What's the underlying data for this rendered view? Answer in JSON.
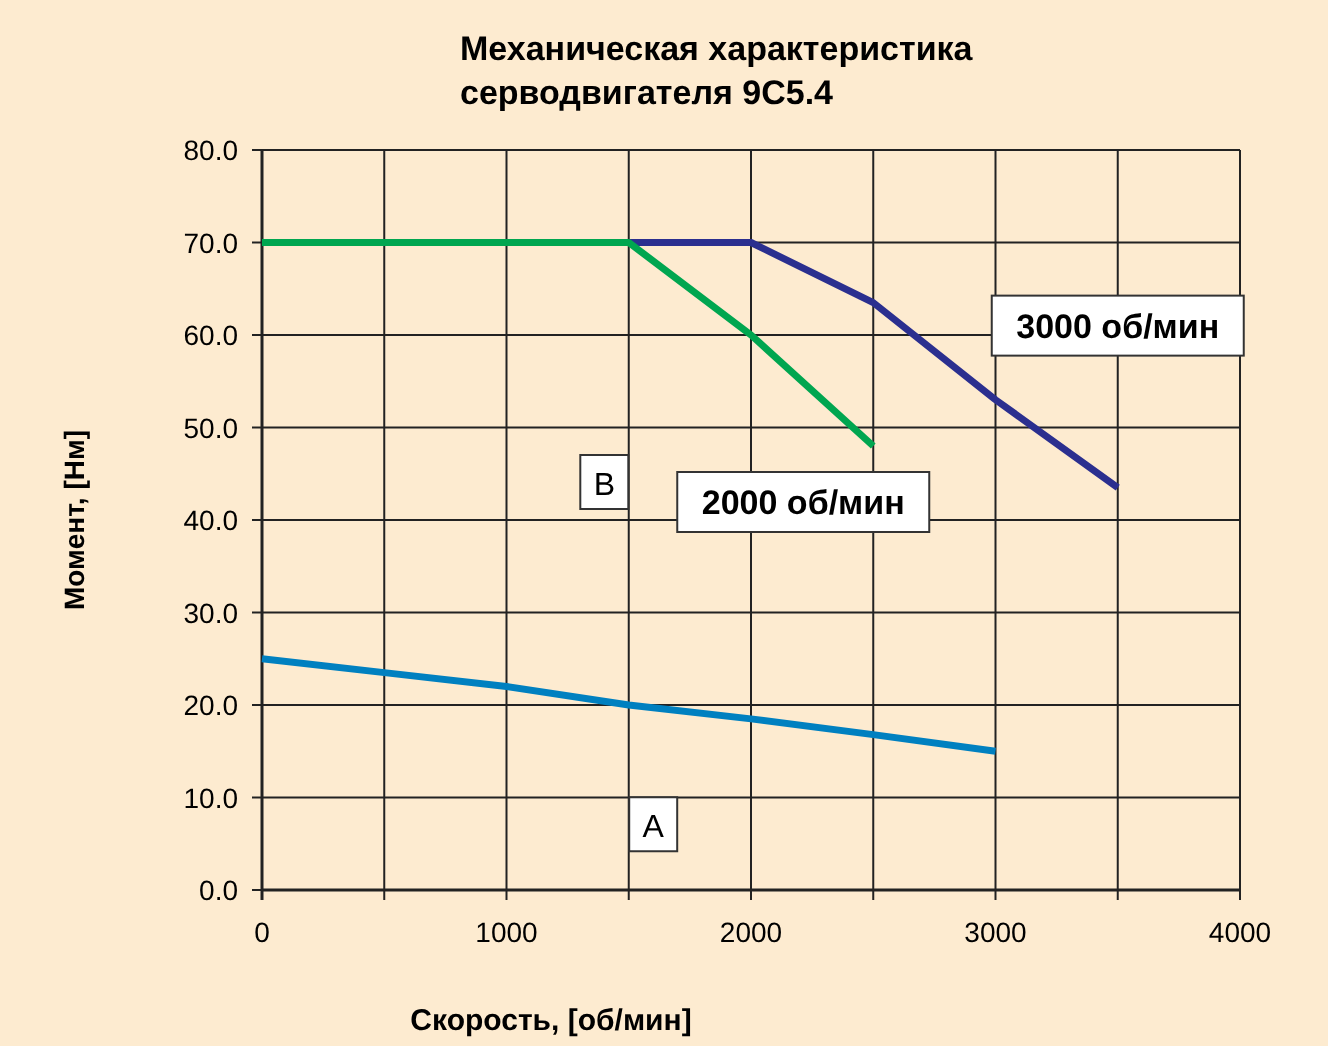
{
  "chart_data": {
    "type": "line",
    "title": "Механическая характеристика\nсерводвигателя 9С5.4",
    "xlabel": "Скорость, [об/мин]",
    "ylabel": "Момент, [Нм]",
    "xlim": [
      0,
      4000
    ],
    "xticks": [
      0,
      {
        "value": 500,
        "label": null
      },
      1000,
      {
        "value": 1500,
        "label": null
      },
      2000,
      {
        "value": 2500,
        "label": null
      },
      3000,
      {
        "value": 3500,
        "label": null
      },
      4000
    ],
    "ylim": [
      0,
      80
    ],
    "yticks": [
      {
        "value": 0,
        "label": "0.0"
      },
      {
        "value": 10,
        "label": "10.0"
      },
      {
        "value": 20,
        "label": "20.0"
      },
      {
        "value": 30,
        "label": "30.0"
      },
      {
        "value": 40,
        "label": "40.0"
      },
      {
        "value": 50,
        "label": "50.0"
      },
      {
        "value": 60,
        "label": "60.0"
      },
      {
        "value": 70,
        "label": "70.0"
      },
      {
        "value": 80,
        "label": "80.0"
      }
    ],
    "grid": true,
    "line_style": "solid",
    "series": [
      {
        "name": "3000 об/мин",
        "color": "#2b2f8f",
        "x": [
          0,
          2000,
          2500,
          3000,
          3500
        ],
        "values": [
          70,
          70,
          63.5,
          53,
          43.5
        ]
      },
      {
        "name": "2000 об/мин",
        "color": "#00a650",
        "x": [
          0,
          1500,
          2000,
          2500
        ],
        "values": [
          70,
          70,
          60,
          48
        ]
      },
      {
        "color": "#0080c0",
        "x": [
          0,
          500,
          1000,
          1500,
          2000,
          2500,
          3000
        ],
        "values": [
          25,
          23.5,
          22,
          20,
          18.5,
          16.8,
          15
        ]
      }
    ],
    "annotations": [
      {
        "text": "A",
        "x": 1600,
        "y": 7
      },
      {
        "text": "B",
        "x": 1400,
        "y": 44
      }
    ]
  }
}
